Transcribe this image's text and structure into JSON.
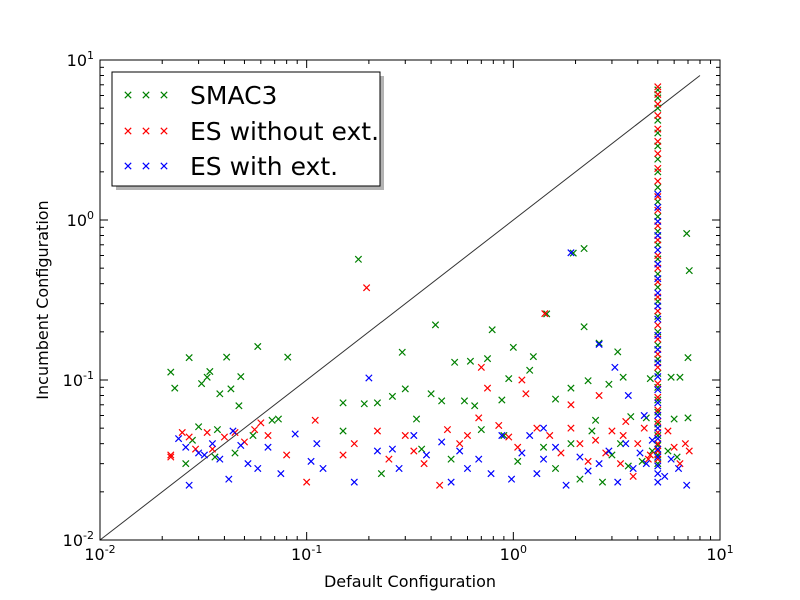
{
  "chart_data": {
    "type": "scatter",
    "title": "",
    "xlabel": "Default Configuration",
    "ylabel": "Incumbent Configuration",
    "xscale": "log",
    "yscale": "log",
    "xlim": [
      0.01,
      10
    ],
    "ylim": [
      0.01,
      10
    ],
    "x_tick_labels": [
      {
        "base": "10",
        "exp": "-2"
      },
      {
        "base": "10",
        "exp": "-1"
      },
      {
        "base": "10",
        "exp": "0"
      },
      {
        "base": "10",
        "exp": "1"
      }
    ],
    "y_tick_labels": [
      {
        "base": "10",
        "exp": "-2"
      },
      {
        "base": "10",
        "exp": "-1"
      },
      {
        "base": "10",
        "exp": "0"
      },
      {
        "base": "10",
        "exp": "1"
      }
    ],
    "grid": false,
    "legend_position": "top-left",
    "marker": "x",
    "reference_line": {
      "from": [
        0.01,
        0.01
      ],
      "to": [
        8,
        8
      ],
      "color": "#333333"
    },
    "series": [
      {
        "name": "SMAC3",
        "color": "#008000",
        "points": [
          [
            0.022,
            0.112
          ],
          [
            0.023,
            0.089
          ],
          [
            0.027,
            0.138
          ],
          [
            0.031,
            0.095
          ],
          [
            0.033,
            0.104
          ],
          [
            0.034,
            0.113
          ],
          [
            0.038,
            0.082
          ],
          [
            0.041,
            0.139
          ],
          [
            0.043,
            0.088
          ],
          [
            0.048,
            0.105
          ],
          [
            0.058,
            0.162
          ],
          [
            0.068,
            0.056
          ],
          [
            0.081,
            0.139
          ],
          [
            0.178,
            0.568
          ],
          [
            0.15,
            0.072
          ],
          [
            0.22,
            0.072
          ],
          [
            0.29,
            0.149
          ],
          [
            0.42,
            0.221
          ],
          [
            0.79,
            0.206
          ],
          [
            1.95,
            0.621
          ],
          [
            2.2,
            0.663
          ],
          [
            1.45,
            0.259
          ],
          [
            2.2,
            0.215
          ],
          [
            1.0,
            0.16
          ],
          [
            1.25,
            0.14
          ],
          [
            2.6,
            0.17
          ],
          [
            3.2,
            0.15
          ],
          [
            0.52,
            0.129
          ],
          [
            0.62,
            0.131
          ],
          [
            0.75,
            0.136
          ],
          [
            0.95,
            0.102
          ],
          [
            1.2,
            0.115
          ],
          [
            1.9,
            0.089
          ],
          [
            2.3,
            0.099
          ],
          [
            2.9,
            0.094
          ],
          [
            3.4,
            0.104
          ],
          [
            4.6,
            0.102
          ],
          [
            5.8,
            0.104
          ],
          [
            6.4,
            0.104
          ],
          [
            7.0,
            0.138
          ],
          [
            6.9,
            0.823
          ],
          [
            7.1,
            0.483
          ],
          [
            0.3,
            0.088
          ],
          [
            0.4,
            0.082
          ],
          [
            0.45,
            0.074
          ],
          [
            0.65,
            0.069
          ],
          [
            0.88,
            0.075
          ],
          [
            1.6,
            0.076
          ],
          [
            2.5,
            0.056
          ],
          [
            3.7,
            0.059
          ],
          [
            4.4,
            0.058
          ],
          [
            6.0,
            0.057
          ],
          [
            7.0,
            0.058
          ],
          [
            0.03,
            0.051
          ],
          [
            0.037,
            0.049
          ],
          [
            0.047,
            0.069
          ],
          [
            0.055,
            0.045
          ],
          [
            0.073,
            0.057
          ],
          [
            0.15,
            0.048
          ],
          [
            0.19,
            0.071
          ],
          [
            0.26,
            0.079
          ],
          [
            0.34,
            0.057
          ],
          [
            0.58,
            0.074
          ],
          [
            0.7,
            0.049
          ],
          [
            0.9,
            0.045
          ],
          [
            1.4,
            0.038
          ],
          [
            1.9,
            0.04
          ],
          [
            2.4,
            0.048
          ],
          [
            3.0,
            0.034
          ],
          [
            3.6,
            0.029
          ],
          [
            4.2,
            0.031
          ],
          [
            4.7,
            0.036
          ],
          [
            0.028,
            0.042
          ],
          [
            0.026,
            0.03
          ],
          [
            0.036,
            0.033
          ],
          [
            0.045,
            0.035
          ],
          [
            0.23,
            0.026
          ],
          [
            0.36,
            0.037
          ],
          [
            0.5,
            0.032
          ],
          [
            1.05,
            0.031
          ],
          [
            1.6,
            0.028
          ],
          [
            2.1,
            0.024
          ],
          [
            2.7,
            0.023
          ],
          [
            3.3,
            0.04
          ],
          [
            5.6,
            0.036
          ],
          [
            6.2,
            0.033
          ],
          [
            5.0,
            6.5
          ],
          [
            5.0,
            5.8
          ],
          [
            5.0,
            5.0
          ],
          [
            5.0,
            4.2
          ],
          [
            5.0,
            3.5
          ],
          [
            5.0,
            2.9
          ],
          [
            5.0,
            2.4
          ],
          [
            5.0,
            2.0
          ],
          [
            5.0,
            1.6
          ],
          [
            5.0,
            1.3
          ],
          [
            5.0,
            1.05
          ],
          [
            5.0,
            0.85
          ],
          [
            5.0,
            0.7
          ],
          [
            5.0,
            0.57
          ],
          [
            5.0,
            0.46
          ],
          [
            5.0,
            0.38
          ],
          [
            5.0,
            0.31
          ],
          [
            5.0,
            0.25
          ],
          [
            5.0,
            0.2
          ],
          [
            5.0,
            0.165
          ],
          [
            5.0,
            0.135
          ],
          [
            5.0,
            0.11
          ],
          [
            5.0,
            0.09
          ],
          [
            5.0,
            0.075
          ],
          [
            5.0,
            0.063
          ],
          [
            5.0,
            0.053
          ],
          [
            5.0,
            0.045
          ],
          [
            5.0,
            0.039
          ],
          [
            5.0,
            0.034
          ],
          [
            5.0,
            0.03
          ]
        ]
      },
      {
        "name": "ES without ext.",
        "color": "#ff0000",
        "points": [
          [
            0.022,
            0.033
          ],
          [
            0.022,
            0.034
          ],
          [
            0.025,
            0.047
          ],
          [
            0.027,
            0.044
          ],
          [
            0.029,
            0.037
          ],
          [
            0.033,
            0.047
          ],
          [
            0.035,
            0.037
          ],
          [
            0.04,
            0.044
          ],
          [
            0.045,
            0.047
          ],
          [
            0.05,
            0.041
          ],
          [
            0.056,
            0.049
          ],
          [
            0.06,
            0.054
          ],
          [
            0.065,
            0.045
          ],
          [
            0.08,
            0.034
          ],
          [
            0.1,
            0.023
          ],
          [
            0.11,
            0.056
          ],
          [
            0.15,
            0.034
          ],
          [
            0.17,
            0.04
          ],
          [
            0.195,
            0.377
          ],
          [
            0.22,
            0.048
          ],
          [
            0.25,
            0.032
          ],
          [
            0.3,
            0.045
          ],
          [
            0.33,
            0.036
          ],
          [
            0.37,
            0.03
          ],
          [
            0.44,
            0.022
          ],
          [
            0.48,
            0.049
          ],
          [
            0.55,
            0.04
          ],
          [
            0.6,
            0.045
          ],
          [
            0.68,
            0.058
          ],
          [
            0.75,
            0.089
          ],
          [
            0.85,
            0.052
          ],
          [
            0.95,
            0.044
          ],
          [
            1.05,
            0.038
          ],
          [
            1.15,
            0.082
          ],
          [
            1.3,
            0.05
          ],
          [
            1.42,
            0.26
          ],
          [
            1.5,
            0.045
          ],
          [
            1.7,
            0.035
          ],
          [
            1.9,
            0.05
          ],
          [
            2.1,
            0.04
          ],
          [
            2.3,
            0.031
          ],
          [
            2.5,
            0.042
          ],
          [
            2.8,
            0.035
          ],
          [
            3.0,
            0.048
          ],
          [
            3.3,
            0.03
          ],
          [
            3.5,
            0.055
          ],
          [
            3.8,
            0.025
          ],
          [
            4.0,
            0.04
          ],
          [
            4.3,
            0.05
          ],
          [
            4.6,
            0.034
          ],
          [
            5.6,
            0.048
          ],
          [
            6.0,
            0.038
          ],
          [
            6.4,
            0.03
          ],
          [
            6.8,
            0.04
          ],
          [
            7.1,
            0.036
          ],
          [
            0.7,
            0.12
          ],
          [
            1.1,
            0.1
          ],
          [
            1.9,
            0.07
          ],
          [
            2.6,
            0.08
          ],
          [
            3.4,
            0.045
          ],
          [
            4.5,
            0.032
          ],
          [
            5.0,
            6.8
          ],
          [
            5.0,
            6.1
          ],
          [
            5.0,
            5.3
          ],
          [
            5.0,
            4.5
          ],
          [
            5.0,
            3.7
          ],
          [
            5.0,
            3.1
          ],
          [
            5.0,
            2.6
          ],
          [
            5.0,
            2.1
          ],
          [
            5.0,
            1.75
          ],
          [
            5.0,
            1.4
          ],
          [
            5.0,
            1.15
          ],
          [
            5.0,
            0.92
          ],
          [
            5.0,
            0.75
          ],
          [
            5.0,
            0.6
          ],
          [
            5.0,
            0.5
          ],
          [
            5.0,
            0.41
          ],
          [
            5.0,
            0.33
          ],
          [
            5.0,
            0.27
          ],
          [
            5.0,
            0.22
          ],
          [
            5.0,
            0.18
          ],
          [
            5.0,
            0.145
          ],
          [
            5.0,
            0.12
          ],
          [
            5.0,
            0.095
          ],
          [
            5.0,
            0.078
          ],
          [
            5.0,
            0.065
          ],
          [
            5.0,
            0.055
          ],
          [
            5.0,
            0.047
          ],
          [
            5.0,
            0.04
          ],
          [
            5.0,
            0.036
          ],
          [
            5.0,
            0.032
          ]
        ]
      },
      {
        "name": "ES with ext.",
        "color": "#0000ff",
        "points": [
          [
            0.024,
            0.043
          ],
          [
            0.026,
            0.038
          ],
          [
            0.027,
            0.022
          ],
          [
            0.03,
            0.035
          ],
          [
            0.032,
            0.034
          ],
          [
            0.035,
            0.04
          ],
          [
            0.038,
            0.032
          ],
          [
            0.042,
            0.024
          ],
          [
            0.044,
            0.048
          ],
          [
            0.048,
            0.039
          ],
          [
            0.052,
            0.03
          ],
          [
            0.058,
            0.028
          ],
          [
            0.065,
            0.038
          ],
          [
            0.075,
            0.026
          ],
          [
            0.088,
            0.046
          ],
          [
            0.105,
            0.031
          ],
          [
            0.112,
            0.04
          ],
          [
            0.12,
            0.028
          ],
          [
            0.17,
            0.023
          ],
          [
            0.2,
            0.103
          ],
          [
            0.22,
            0.036
          ],
          [
            0.26,
            0.037
          ],
          [
            0.28,
            0.028
          ],
          [
            0.33,
            0.045
          ],
          [
            0.38,
            0.034
          ],
          [
            0.45,
            0.041
          ],
          [
            0.5,
            0.023
          ],
          [
            0.55,
            0.036
          ],
          [
            0.6,
            0.028
          ],
          [
            0.68,
            0.032
          ],
          [
            0.78,
            0.026
          ],
          [
            0.88,
            0.045
          ],
          [
            0.98,
            0.024
          ],
          [
            1.1,
            0.035
          ],
          [
            1.2,
            0.045
          ],
          [
            1.3,
            0.026
          ],
          [
            1.4,
            0.032
          ],
          [
            1.6,
            0.038
          ],
          [
            1.8,
            0.022
          ],
          [
            1.9,
            0.624
          ],
          [
            2.1,
            0.033
          ],
          [
            2.3,
            0.027
          ],
          [
            2.6,
            0.03
          ],
          [
            2.9,
            0.036
          ],
          [
            3.2,
            0.023
          ],
          [
            3.5,
            0.04
          ],
          [
            3.8,
            0.028
          ],
          [
            4.1,
            0.035
          ],
          [
            4.4,
            0.03
          ],
          [
            4.7,
            0.042
          ],
          [
            5.4,
            0.025
          ],
          [
            5.8,
            0.032
          ],
          [
            6.3,
            0.028
          ],
          [
            6.9,
            0.022
          ],
          [
            2.6,
            0.167
          ],
          [
            3.1,
            0.12
          ],
          [
            3.6,
            0.08
          ],
          [
            4.3,
            0.06
          ],
          [
            1.4,
            0.05
          ],
          [
            5.0,
            1.45
          ],
          [
            5.0,
            1.2
          ],
          [
            5.0,
            0.98
          ],
          [
            5.0,
            0.8
          ],
          [
            5.0,
            0.65
          ],
          [
            5.0,
            0.53
          ],
          [
            5.0,
            0.43
          ],
          [
            5.0,
            0.35
          ],
          [
            5.0,
            0.29
          ],
          [
            5.0,
            0.24
          ],
          [
            5.0,
            0.19
          ],
          [
            5.0,
            0.155
          ],
          [
            5.0,
            0.128
          ],
          [
            5.0,
            0.105
          ],
          [
            5.0,
            0.087
          ],
          [
            5.0,
            0.072
          ],
          [
            5.0,
            0.06
          ],
          [
            5.0,
            0.05
          ],
          [
            5.0,
            0.043
          ],
          [
            5.0,
            0.037
          ],
          [
            5.0,
            0.033
          ],
          [
            5.0,
            0.029
          ],
          [
            5.0,
            0.026
          ],
          [
            5.0,
            0.023
          ]
        ]
      }
    ]
  }
}
